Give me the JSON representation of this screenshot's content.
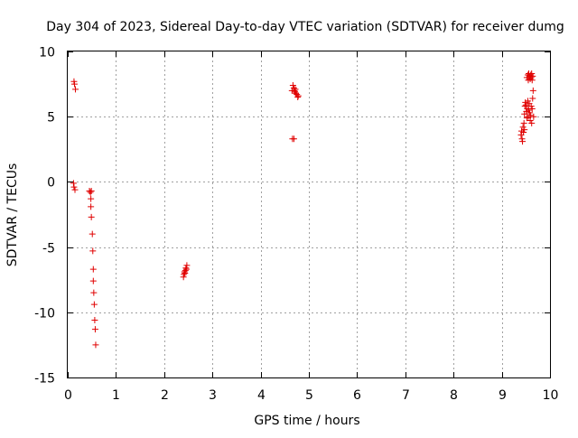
{
  "chart_data": {
    "type": "scatter",
    "title": "Day 304 of 2023, Sidereal Day-to-day VTEC variation (SDTVAR) for receiver dumg",
    "xlabel": "GPS time / hours",
    "ylabel": "SDTVAR / TECUs",
    "xlim": [
      0,
      10
    ],
    "ylim": [
      -15,
      10
    ],
    "xticks": [
      0,
      1,
      2,
      3,
      4,
      5,
      6,
      7,
      8,
      9,
      10
    ],
    "yticks": [
      -15,
      -10,
      -5,
      0,
      5,
      10
    ],
    "xtick_labels": [
      "0",
      "1",
      "2",
      "3",
      "4",
      "5",
      "6",
      "7",
      "8",
      "9",
      "10"
    ],
    "ytick_labels": [
      "-15",
      "-10",
      "-5",
      "0",
      "5",
      "10"
    ],
    "grid": true,
    "marker": "+",
    "marker_color": "#e00000",
    "series": [
      {
        "name": "SDTVAR",
        "points": [
          [
            0.13,
            7.7
          ],
          [
            0.14,
            7.5
          ],
          [
            0.16,
            7.1
          ],
          [
            0.12,
            -0.1
          ],
          [
            0.13,
            -0.4
          ],
          [
            0.15,
            -0.6
          ],
          [
            0.45,
            -0.7
          ],
          [
            0.47,
            -0.8
          ],
          [
            0.49,
            -0.7
          ],
          [
            0.48,
            -1.3
          ],
          [
            0.48,
            -1.9
          ],
          [
            0.49,
            -2.7
          ],
          [
            0.51,
            -4.0
          ],
          [
            0.52,
            -5.3
          ],
          [
            0.53,
            -6.7
          ],
          [
            0.53,
            -7.6
          ],
          [
            0.54,
            -8.5
          ],
          [
            0.55,
            -9.4
          ],
          [
            0.56,
            -10.6
          ],
          [
            0.57,
            -11.3
          ],
          [
            0.58,
            -12.5
          ],
          [
            2.4,
            -7.3
          ],
          [
            2.41,
            -7.1
          ],
          [
            2.42,
            -6.9
          ],
          [
            2.44,
            -6.8
          ],
          [
            2.45,
            -6.6
          ],
          [
            2.47,
            -6.4
          ],
          [
            2.46,
            -6.7
          ],
          [
            2.43,
            -7.0
          ],
          [
            4.65,
            7.0
          ],
          [
            4.67,
            7.4
          ],
          [
            4.69,
            7.2
          ],
          [
            4.7,
            7.0
          ],
          [
            4.71,
            6.9
          ],
          [
            4.72,
            7.1
          ],
          [
            4.73,
            6.8
          ],
          [
            4.75,
            6.7
          ],
          [
            4.77,
            6.5
          ],
          [
            4.78,
            6.6
          ],
          [
            4.66,
            3.3
          ],
          [
            4.69,
            3.3
          ],
          [
            9.4,
            3.6
          ],
          [
            9.41,
            3.9
          ],
          [
            9.42,
            3.3
          ],
          [
            9.43,
            3.1
          ],
          [
            9.44,
            4.2
          ],
          [
            9.45,
            3.8
          ],
          [
            9.46,
            4.5
          ],
          [
            9.47,
            5.2
          ],
          [
            9.48,
            5.8
          ],
          [
            9.49,
            6.1
          ],
          [
            9.5,
            5.9
          ],
          [
            9.51,
            5.4
          ],
          [
            9.52,
            4.9
          ],
          [
            9.53,
            5.6
          ],
          [
            9.54,
            6.2
          ],
          [
            9.55,
            5.0
          ],
          [
            9.56,
            5.5
          ],
          [
            9.57,
            6.0
          ],
          [
            9.58,
            5.3
          ],
          [
            9.59,
            4.7
          ],
          [
            9.6,
            5.1
          ],
          [
            9.61,
            5.8
          ],
          [
            9.62,
            4.5
          ],
          [
            9.63,
            5.6
          ],
          [
            9.64,
            6.4
          ],
          [
            9.65,
            7.0
          ],
          [
            9.66,
            5.0
          ],
          [
            9.47,
            4.0
          ],
          [
            9.52,
            8.0
          ],
          [
            9.54,
            8.2
          ],
          [
            9.56,
            8.3
          ],
          [
            9.57,
            8.0
          ],
          [
            9.58,
            8.1
          ],
          [
            9.59,
            7.9
          ],
          [
            9.6,
            8.2
          ],
          [
            9.61,
            8.0
          ],
          [
            9.62,
            8.3
          ],
          [
            9.63,
            7.8
          ],
          [
            9.64,
            8.1
          ],
          [
            9.55,
            7.8
          ]
        ]
      }
    ]
  }
}
